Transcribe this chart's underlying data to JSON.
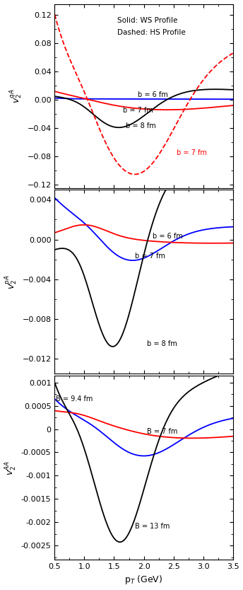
{
  "xlim": [
    0.5,
    3.5
  ],
  "xlabel": "p$_T$ (GeV)",
  "panel1": {
    "ylabel": "$v_2^{qA}$",
    "ylim": [
      -0.125,
      0.135
    ],
    "yticks": [
      -0.12,
      -0.08,
      -0.04,
      0.0,
      0.04,
      0.08,
      0.12
    ]
  },
  "panel2": {
    "ylabel": "$v_2^{pA}$",
    "ylim": [
      -0.0135,
      0.005
    ],
    "yticks": [
      -0.012,
      -0.008,
      -0.004,
      0.0,
      0.004
    ]
  },
  "panel3": {
    "ylabel": "$v_2^{AA}$",
    "ylim": [
      -0.0028,
      0.00115
    ],
    "yticks": [
      -0.0025,
      -0.002,
      -0.0015,
      -0.001,
      -0.0005,
      0.0,
      0.0005,
      0.001
    ]
  },
  "bg_color": "#ffffff",
  "line_width": 1.3
}
